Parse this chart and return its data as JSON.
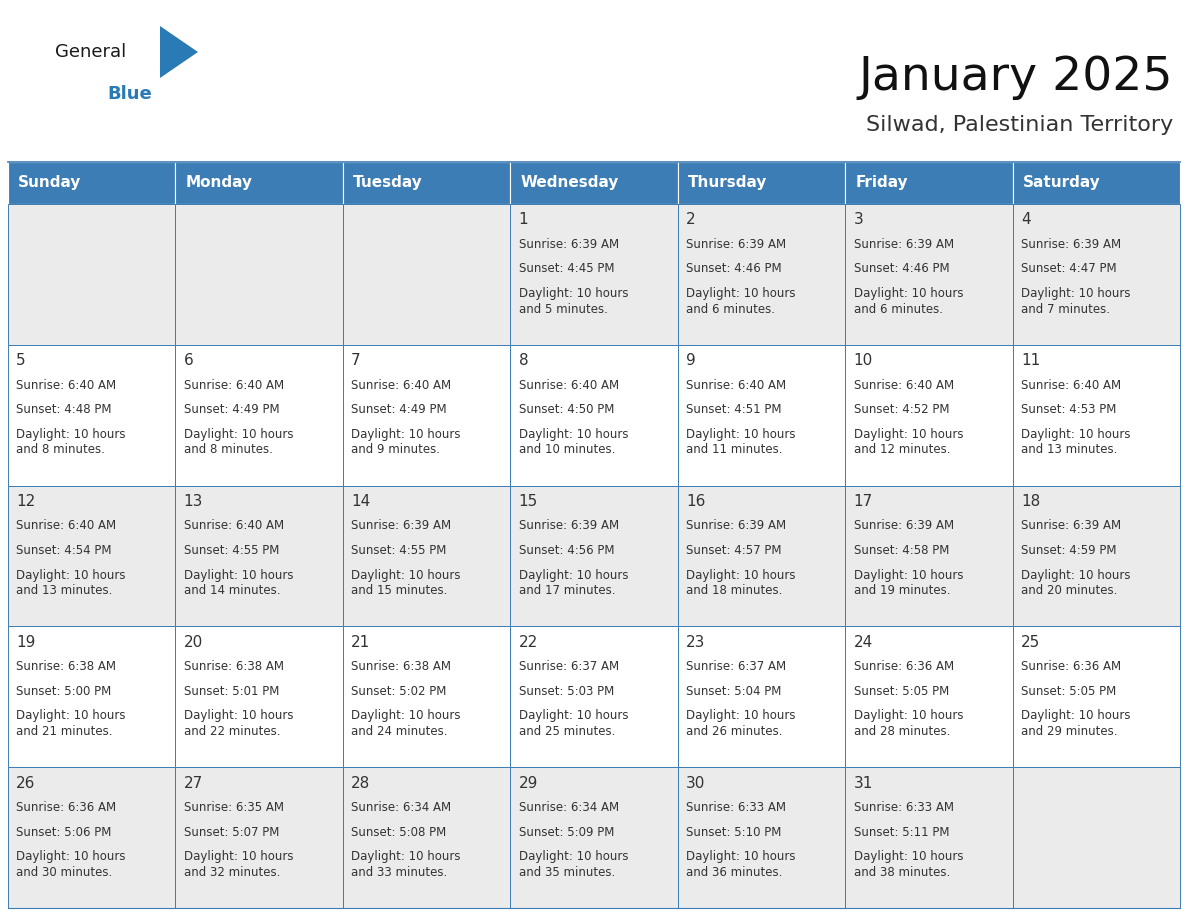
{
  "title": "January 2025",
  "subtitle": "Silwad, Palestinian Territory",
  "header_bg": "#3d7db5",
  "header_text_color": "#ffffff",
  "cell_bg_light": "#ebebeb",
  "cell_bg_white": "#ffffff",
  "border_color": "#3d7db5",
  "text_color": "#333333",
  "days_of_week": [
    "Sunday",
    "Monday",
    "Tuesday",
    "Wednesday",
    "Thursday",
    "Friday",
    "Saturday"
  ],
  "weeks": [
    [
      {
        "day": "",
        "sunrise": "",
        "sunset": "",
        "daylight": ""
      },
      {
        "day": "",
        "sunrise": "",
        "sunset": "",
        "daylight": ""
      },
      {
        "day": "",
        "sunrise": "",
        "sunset": "",
        "daylight": ""
      },
      {
        "day": "1",
        "sunrise": "6:39 AM",
        "sunset": "4:45 PM",
        "daylight": "10 hours\nand 5 minutes."
      },
      {
        "day": "2",
        "sunrise": "6:39 AM",
        "sunset": "4:46 PM",
        "daylight": "10 hours\nand 6 minutes."
      },
      {
        "day": "3",
        "sunrise": "6:39 AM",
        "sunset": "4:46 PM",
        "daylight": "10 hours\nand 6 minutes."
      },
      {
        "day": "4",
        "sunrise": "6:39 AM",
        "sunset": "4:47 PM",
        "daylight": "10 hours\nand 7 minutes."
      }
    ],
    [
      {
        "day": "5",
        "sunrise": "6:40 AM",
        "sunset": "4:48 PM",
        "daylight": "10 hours\nand 8 minutes."
      },
      {
        "day": "6",
        "sunrise": "6:40 AM",
        "sunset": "4:49 PM",
        "daylight": "10 hours\nand 8 minutes."
      },
      {
        "day": "7",
        "sunrise": "6:40 AM",
        "sunset": "4:49 PM",
        "daylight": "10 hours\nand 9 minutes."
      },
      {
        "day": "8",
        "sunrise": "6:40 AM",
        "sunset": "4:50 PM",
        "daylight": "10 hours\nand 10 minutes."
      },
      {
        "day": "9",
        "sunrise": "6:40 AM",
        "sunset": "4:51 PM",
        "daylight": "10 hours\nand 11 minutes."
      },
      {
        "day": "10",
        "sunrise": "6:40 AM",
        "sunset": "4:52 PM",
        "daylight": "10 hours\nand 12 minutes."
      },
      {
        "day": "11",
        "sunrise": "6:40 AM",
        "sunset": "4:53 PM",
        "daylight": "10 hours\nand 13 minutes."
      }
    ],
    [
      {
        "day": "12",
        "sunrise": "6:40 AM",
        "sunset": "4:54 PM",
        "daylight": "10 hours\nand 13 minutes."
      },
      {
        "day": "13",
        "sunrise": "6:40 AM",
        "sunset": "4:55 PM",
        "daylight": "10 hours\nand 14 minutes."
      },
      {
        "day": "14",
        "sunrise": "6:39 AM",
        "sunset": "4:55 PM",
        "daylight": "10 hours\nand 15 minutes."
      },
      {
        "day": "15",
        "sunrise": "6:39 AM",
        "sunset": "4:56 PM",
        "daylight": "10 hours\nand 17 minutes."
      },
      {
        "day": "16",
        "sunrise": "6:39 AM",
        "sunset": "4:57 PM",
        "daylight": "10 hours\nand 18 minutes."
      },
      {
        "day": "17",
        "sunrise": "6:39 AM",
        "sunset": "4:58 PM",
        "daylight": "10 hours\nand 19 minutes."
      },
      {
        "day": "18",
        "sunrise": "6:39 AM",
        "sunset": "4:59 PM",
        "daylight": "10 hours\nand 20 minutes."
      }
    ],
    [
      {
        "day": "19",
        "sunrise": "6:38 AM",
        "sunset": "5:00 PM",
        "daylight": "10 hours\nand 21 minutes."
      },
      {
        "day": "20",
        "sunrise": "6:38 AM",
        "sunset": "5:01 PM",
        "daylight": "10 hours\nand 22 minutes."
      },
      {
        "day": "21",
        "sunrise": "6:38 AM",
        "sunset": "5:02 PM",
        "daylight": "10 hours\nand 24 minutes."
      },
      {
        "day": "22",
        "sunrise": "6:37 AM",
        "sunset": "5:03 PM",
        "daylight": "10 hours\nand 25 minutes."
      },
      {
        "day": "23",
        "sunrise": "6:37 AM",
        "sunset": "5:04 PM",
        "daylight": "10 hours\nand 26 minutes."
      },
      {
        "day": "24",
        "sunrise": "6:36 AM",
        "sunset": "5:05 PM",
        "daylight": "10 hours\nand 28 minutes."
      },
      {
        "day": "25",
        "sunrise": "6:36 AM",
        "sunset": "5:05 PM",
        "daylight": "10 hours\nand 29 minutes."
      }
    ],
    [
      {
        "day": "26",
        "sunrise": "6:36 AM",
        "sunset": "5:06 PM",
        "daylight": "10 hours\nand 30 minutes."
      },
      {
        "day": "27",
        "sunrise": "6:35 AM",
        "sunset": "5:07 PM",
        "daylight": "10 hours\nand 32 minutes."
      },
      {
        "day": "28",
        "sunrise": "6:34 AM",
        "sunset": "5:08 PM",
        "daylight": "10 hours\nand 33 minutes."
      },
      {
        "day": "29",
        "sunrise": "6:34 AM",
        "sunset": "5:09 PM",
        "daylight": "10 hours\nand 35 minutes."
      },
      {
        "day": "30",
        "sunrise": "6:33 AM",
        "sunset": "5:10 PM",
        "daylight": "10 hours\nand 36 minutes."
      },
      {
        "day": "31",
        "sunrise": "6:33 AM",
        "sunset": "5:11 PM",
        "daylight": "10 hours\nand 38 minutes."
      },
      {
        "day": "",
        "sunrise": "",
        "sunset": "",
        "daylight": ""
      }
    ]
  ],
  "logo_text1": "General",
  "logo_text2": "Blue",
  "logo_text_color1": "#1a1a1a",
  "logo_text_color2": "#2a7ab5",
  "logo_triangle_color": "#2a7ab5",
  "fig_width": 11.88,
  "fig_height": 9.18,
  "dpi": 100
}
